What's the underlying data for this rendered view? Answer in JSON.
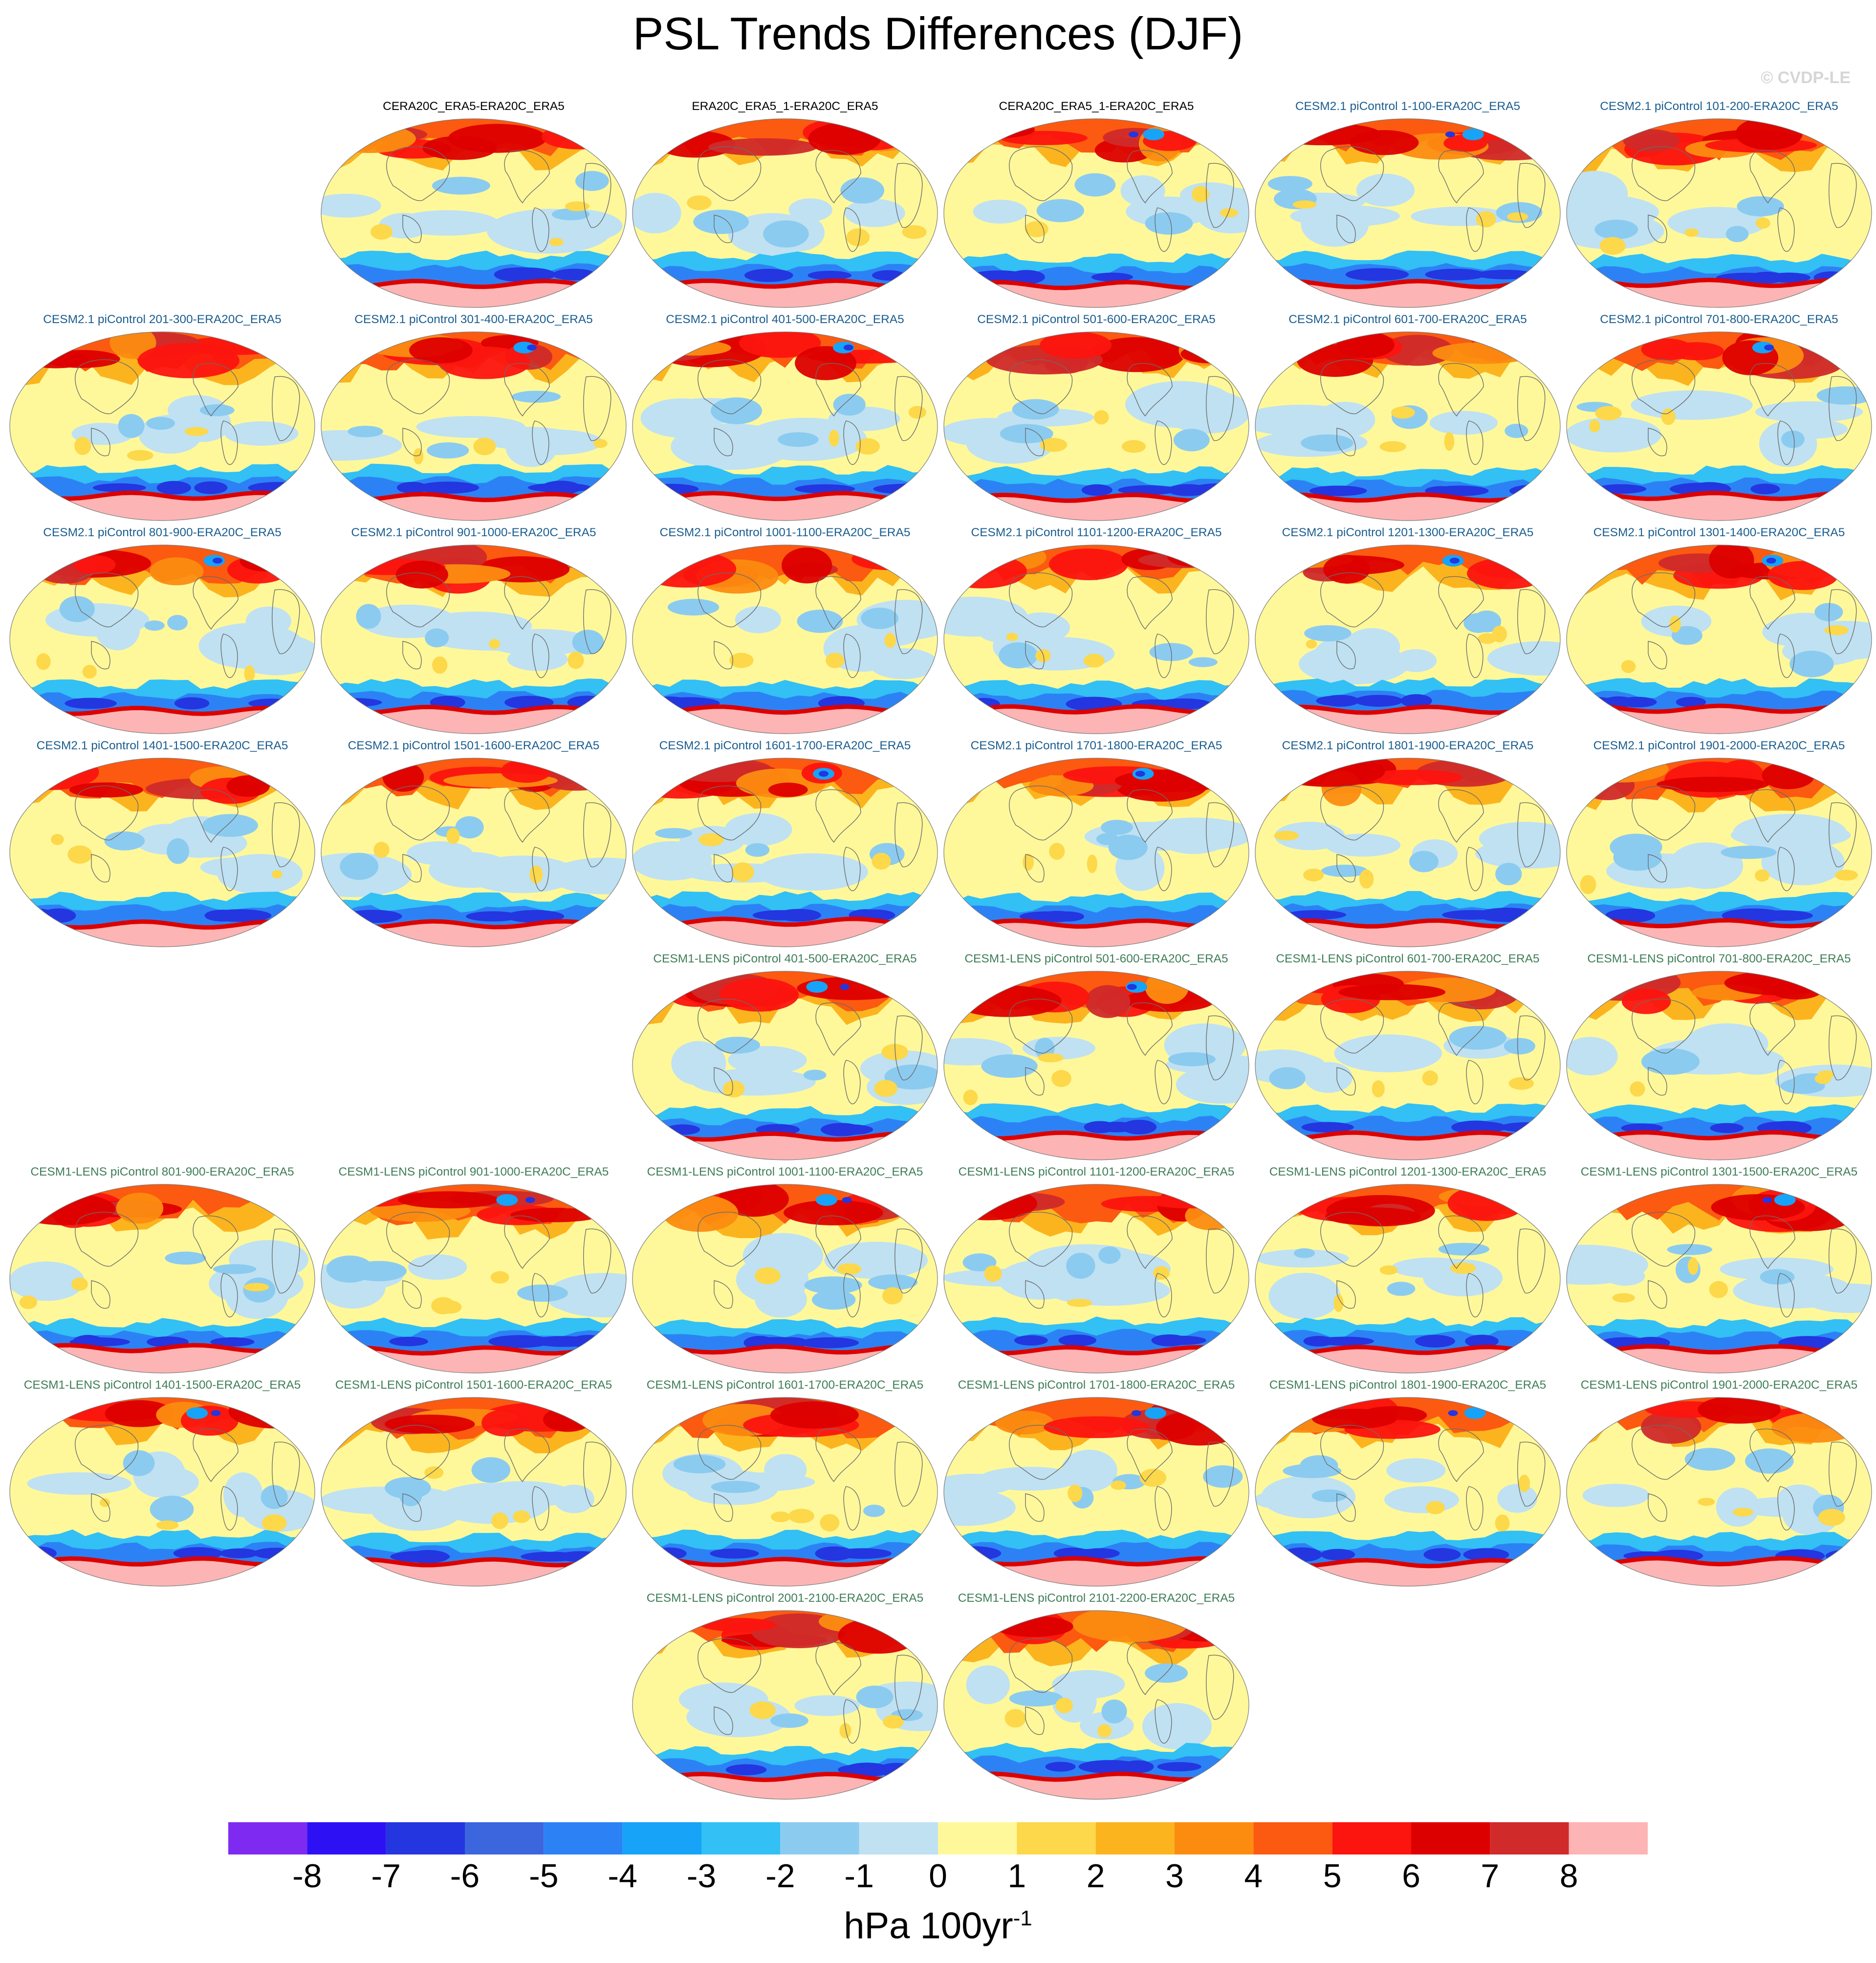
{
  "title": "PSL Trends Differences (DJF)",
  "copyright": "© CVDP-LE",
  "units": {
    "base": "hPa 100yr",
    "exponent": "-1"
  },
  "colorbar": {
    "labels": [
      "-8",
      "-7",
      "-6",
      "-5",
      "-4",
      "-3",
      "-2",
      "-1",
      "0",
      "1",
      "2",
      "3",
      "4",
      "5",
      "6",
      "7",
      "8"
    ],
    "colors": [
      "#7f2af0",
      "#2e10f5",
      "#2336e0",
      "#3c66de",
      "#2c82f4",
      "#17a3f7",
      "#32c0f5",
      "#8ccbf0",
      "#bfe1f2",
      "#fff89a",
      "#fcd84a",
      "#fcb41e",
      "#fc8c10",
      "#fc5a10",
      "#fc140f",
      "#dd0000",
      "#d02a2a",
      "#fcb4b4"
    ]
  },
  "title_colors": {
    "reference": "#000000",
    "cesm2": "#1a5d8f",
    "cesm1": "#3f7d57"
  },
  "panels": [
    {
      "label": "CERA20C_ERA5-ERA20C_ERA5",
      "group": "reference",
      "variant": 0
    },
    {
      "label": "ERA20C_ERA5_1-ERA20C_ERA5",
      "group": "reference",
      "variant": 1
    },
    {
      "label": "CERA20C_ERA5_1-ERA20C_ERA5",
      "group": "reference",
      "variant": 2
    },
    {
      "label": "CESM2.1 piControl 1-100-ERA20C_ERA5",
      "group": "cesm2",
      "variant": 3
    },
    {
      "label": "CESM2.1 piControl 101-200-ERA20C_ERA5",
      "group": "cesm2",
      "variant": 4
    },
    {
      "label": "CESM2.1 piControl 201-300-ERA20C_ERA5",
      "group": "cesm2",
      "variant": 5
    },
    {
      "label": "CESM2.1 piControl 301-400-ERA20C_ERA5",
      "group": "cesm2",
      "variant": 6
    },
    {
      "label": "CESM2.1 piControl 401-500-ERA20C_ERA5",
      "group": "cesm2",
      "variant": 7
    },
    {
      "label": "CESM2.1 piControl 501-600-ERA20C_ERA5",
      "group": "cesm2",
      "variant": 8
    },
    {
      "label": "CESM2.1 piControl 601-700-ERA20C_ERA5",
      "group": "cesm2",
      "variant": 9
    },
    {
      "label": "CESM2.1 piControl 701-800-ERA20C_ERA5",
      "group": "cesm2",
      "variant": 10
    },
    {
      "label": "CESM2.1 piControl 801-900-ERA20C_ERA5",
      "group": "cesm2",
      "variant": 11
    },
    {
      "label": "CESM2.1 piControl 901-1000-ERA20C_ERA5",
      "group": "cesm2",
      "variant": 12
    },
    {
      "label": "CESM2.1 piControl 1001-1100-ERA20C_ERA5",
      "group": "cesm2",
      "variant": 13
    },
    {
      "label": "CESM2.1 piControl 1101-1200-ERA20C_ERA5",
      "group": "cesm2",
      "variant": 14
    },
    {
      "label": "CESM2.1 piControl 1201-1300-ERA20C_ERA5",
      "group": "cesm2",
      "variant": 15
    },
    {
      "label": "CESM2.1 piControl 1301-1400-ERA20C_ERA5",
      "group": "cesm2",
      "variant": 16
    },
    {
      "label": "CESM2.1 piControl 1401-1500-ERA20C_ERA5",
      "group": "cesm2",
      "variant": 17
    },
    {
      "label": "CESM2.1 piControl 1501-1600-ERA20C_ERA5",
      "group": "cesm2",
      "variant": 18
    },
    {
      "label": "CESM2.1 piControl 1601-1700-ERA20C_ERA5",
      "group": "cesm2",
      "variant": 19
    },
    {
      "label": "CESM2.1 piControl 1701-1800-ERA20C_ERA5",
      "group": "cesm2",
      "variant": 20
    },
    {
      "label": "CESM2.1 piControl 1801-1900-ERA20C_ERA5",
      "group": "cesm2",
      "variant": 21
    },
    {
      "label": "CESM2.1 piControl 1901-2000-ERA20C_ERA5",
      "group": "cesm2",
      "variant": 22
    },
    {
      "label": "CESM1-LENS piControl 401-500-ERA20C_ERA5",
      "group": "cesm1",
      "variant": 23
    },
    {
      "label": "CESM1-LENS piControl 501-600-ERA20C_ERA5",
      "group": "cesm1",
      "variant": 24
    },
    {
      "label": "CESM1-LENS piControl 601-700-ERA20C_ERA5",
      "group": "cesm1",
      "variant": 25
    },
    {
      "label": "CESM1-LENS piControl 701-800-ERA20C_ERA5",
      "group": "cesm1",
      "variant": 26
    },
    {
      "label": "CESM1-LENS piControl 801-900-ERA20C_ERA5",
      "group": "cesm1",
      "variant": 27
    },
    {
      "label": "CESM1-LENS piControl 901-1000-ERA20C_ERA5",
      "group": "cesm1",
      "variant": 28
    },
    {
      "label": "CESM1-LENS piControl 1001-1100-ERA20C_ERA5",
      "group": "cesm1",
      "variant": 29
    },
    {
      "label": "CESM1-LENS piControl 1101-1200-ERA20C_ERA5",
      "group": "cesm1",
      "variant": 30
    },
    {
      "label": "CESM1-LENS piControl 1201-1300-ERA20C_ERA5",
      "group": "cesm1",
      "variant": 31
    },
    {
      "label": "CESM1-LENS piControl 1301-1500-ERA20C_ERA5",
      "group": "cesm1",
      "variant": 32
    },
    {
      "label": "CESM1-LENS piControl 1401-1500-ERA20C_ERA5",
      "group": "cesm1",
      "variant": 33
    },
    {
      "label": "CESM1-LENS piControl 1501-1600-ERA20C_ERA5",
      "group": "cesm1",
      "variant": 34
    },
    {
      "label": "CESM1-LENS piControl 1601-1700-ERA20C_ERA5",
      "group": "cesm1",
      "variant": 35
    },
    {
      "label": "CESM1-LENS piControl 1701-1800-ERA20C_ERA5",
      "group": "cesm1",
      "variant": 36
    },
    {
      "label": "CESM1-LENS piControl 1801-1900-ERA20C_ERA5",
      "group": "cesm1",
      "variant": 37
    },
    {
      "label": "CESM1-LENS piControl 1901-2000-ERA20C_ERA5",
      "group": "cesm1",
      "variant": 38
    },
    {
      "label": "CESM1-LENS piControl 2001-2100-ERA20C_ERA5",
      "group": "cesm1",
      "variant": 39
    },
    {
      "label": "CESM1-LENS piControl 2101-2200-ERA20C_ERA5",
      "group": "cesm1",
      "variant": 40
    }
  ]
}
